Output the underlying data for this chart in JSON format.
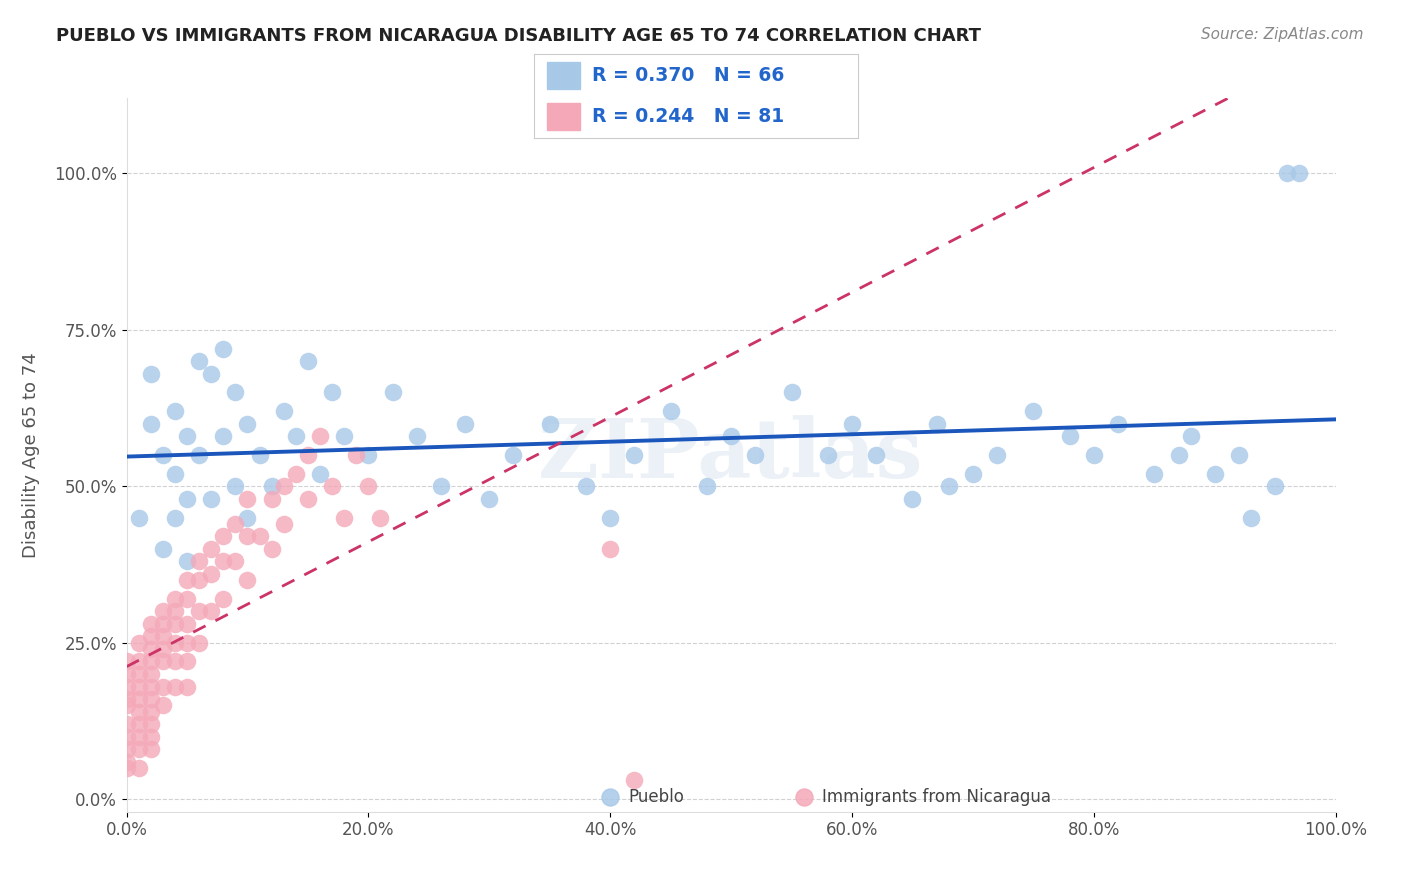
{
  "title": "PUEBLO VS IMMIGRANTS FROM NICARAGUA DISABILITY AGE 65 TO 74 CORRELATION CHART",
  "source": "Source: ZipAtlas.com",
  "ylabel": "Disability Age 65 to 74",
  "xlim": [
    0.0,
    1.0
  ],
  "ylim": [
    -0.02,
    1.12
  ],
  "pueblo_color": "#a8c8e8",
  "nicaragua_color": "#f4a8b8",
  "pueblo_line_color": "#1a56bb",
  "nicaragua_line_color": "#cc3366",
  "pueblo_R": 0.37,
  "pueblo_N": 66,
  "nicaragua_R": 0.244,
  "nicaragua_N": 81,
  "legend_label_pueblo": "Pueblo",
  "legend_label_nicaragua": "Immigrants from Nicaragua",
  "watermark": "ZIPatlas",
  "background_color": "#ffffff",
  "grid_color": "#cccccc",
  "title_color": "#222222",
  "axis_label_color": "#555555",
  "stat_label_color": "#2266cc"
}
